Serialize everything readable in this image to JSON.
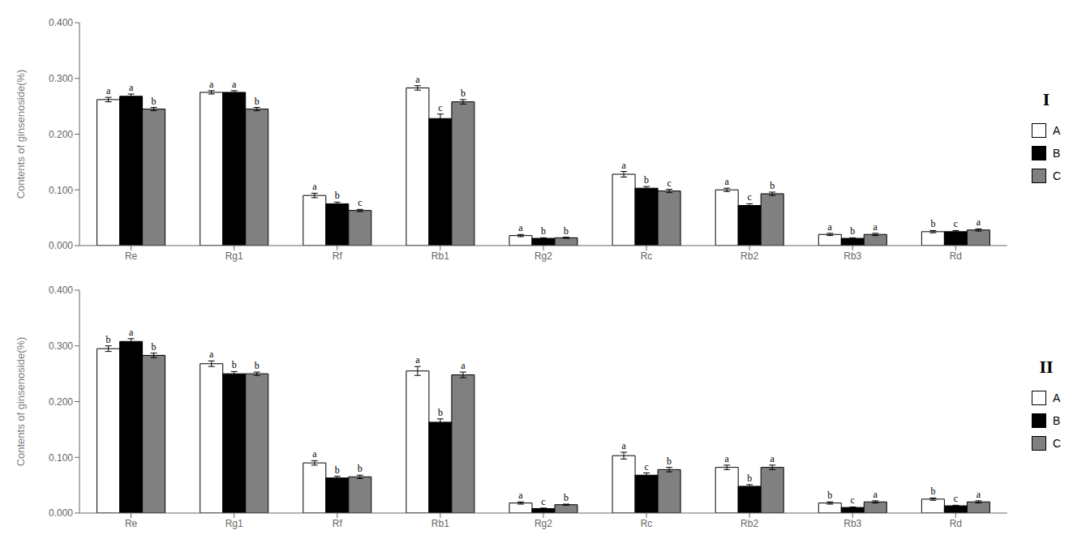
{
  "chart_data": [
    {
      "type": "bar",
      "title": "I",
      "ylabel": "Contents of ginsenoside(%)",
      "categories": [
        "Re",
        "Rg1",
        "Rf",
        "Rb1",
        "Rg2",
        "Rc",
        "Rb2",
        "Rb3",
        "Rd"
      ],
      "series": [
        {
          "name": "A",
          "color": "white",
          "values": [
            0.262,
            0.275,
            0.09,
            0.283,
            0.018,
            0.128,
            0.1,
            0.02,
            0.025
          ],
          "errors": [
            0.004,
            0.003,
            0.004,
            0.004,
            0.002,
            0.005,
            0.003,
            0.002,
            0.002
          ],
          "annotations": [
            "a",
            "a",
            "a",
            "a",
            "a",
            "a",
            "a",
            "a",
            "b"
          ]
        },
        {
          "name": "B",
          "color": "black",
          "values": [
            0.268,
            0.275,
            0.075,
            0.228,
            0.013,
            0.103,
            0.072,
            0.013,
            0.025
          ],
          "errors": [
            0.004,
            0.003,
            0.003,
            0.008,
            0.001,
            0.003,
            0.003,
            0.001,
            0.002
          ],
          "annotations": [
            "a",
            "a",
            "b",
            "c",
            "b",
            "b",
            "c",
            "b",
            "c"
          ]
        },
        {
          "name": "C",
          "color": "#808080",
          "values": [
            0.245,
            0.245,
            0.063,
            0.258,
            0.014,
            0.098,
            0.093,
            0.02,
            0.028
          ],
          "errors": [
            0.003,
            0.003,
            0.002,
            0.004,
            0.001,
            0.003,
            0.003,
            0.002,
            0.002
          ],
          "annotations": [
            "b",
            "b",
            "c",
            "b",
            "b",
            "c",
            "b",
            "a",
            "a"
          ]
        }
      ],
      "ylim": [
        0,
        0.4
      ],
      "yticks": [
        {
          "value": 0,
          "label": "0.000"
        },
        {
          "value": 0.1,
          "label": "0.100"
        },
        {
          "value": 0.2,
          "label": "0.200"
        },
        {
          "value": 0.3,
          "label": "0.300"
        },
        {
          "value": 0.4,
          "label": "0.400"
        }
      ],
      "legend": "right",
      "grid": false
    },
    {
      "type": "bar",
      "title": "II",
      "ylabel": "Contents of ginsenoside(%)",
      "categories": [
        "Re",
        "Rg1",
        "Rf",
        "Rb1",
        "Rg2",
        "Rc",
        "Rb2",
        "Rb3",
        "Rd"
      ],
      "series": [
        {
          "name": "A",
          "color": "white",
          "values": [
            0.295,
            0.268,
            0.09,
            0.255,
            0.018,
            0.103,
            0.082,
            0.018,
            0.025
          ],
          "errors": [
            0.005,
            0.005,
            0.004,
            0.008,
            0.002,
            0.006,
            0.004,
            0.002,
            0.002
          ],
          "annotations": [
            "b",
            "a",
            "a",
            "a",
            "a",
            "a",
            "a",
            "b",
            "b"
          ]
        },
        {
          "name": "B",
          "color": "black",
          "values": [
            0.308,
            0.25,
            0.063,
            0.163,
            0.008,
            0.068,
            0.048,
            0.01,
            0.013
          ],
          "errors": [
            0.005,
            0.004,
            0.003,
            0.006,
            0.001,
            0.004,
            0.003,
            0.001,
            0.001
          ],
          "annotations": [
            "a",
            "b",
            "b",
            "b",
            "c",
            "c",
            "b",
            "c",
            "c"
          ]
        },
        {
          "name": "C",
          "color": "#808080",
          "values": [
            0.283,
            0.25,
            0.065,
            0.248,
            0.015,
            0.078,
            0.082,
            0.02,
            0.02
          ],
          "errors": [
            0.004,
            0.003,
            0.003,
            0.005,
            0.001,
            0.004,
            0.004,
            0.002,
            0.002
          ],
          "annotations": [
            "b",
            "b",
            "b",
            "a",
            "b",
            "b",
            "a",
            "a",
            "a"
          ]
        }
      ],
      "ylim": [
        0,
        0.4
      ],
      "yticks": [
        {
          "value": 0,
          "label": "0.000"
        },
        {
          "value": 0.1,
          "label": "0.100"
        },
        {
          "value": 0.2,
          "label": "0.200"
        },
        {
          "value": 0.3,
          "label": "0.300"
        },
        {
          "value": 0.4,
          "label": "0.400"
        }
      ],
      "legend": "right",
      "grid": false
    }
  ]
}
